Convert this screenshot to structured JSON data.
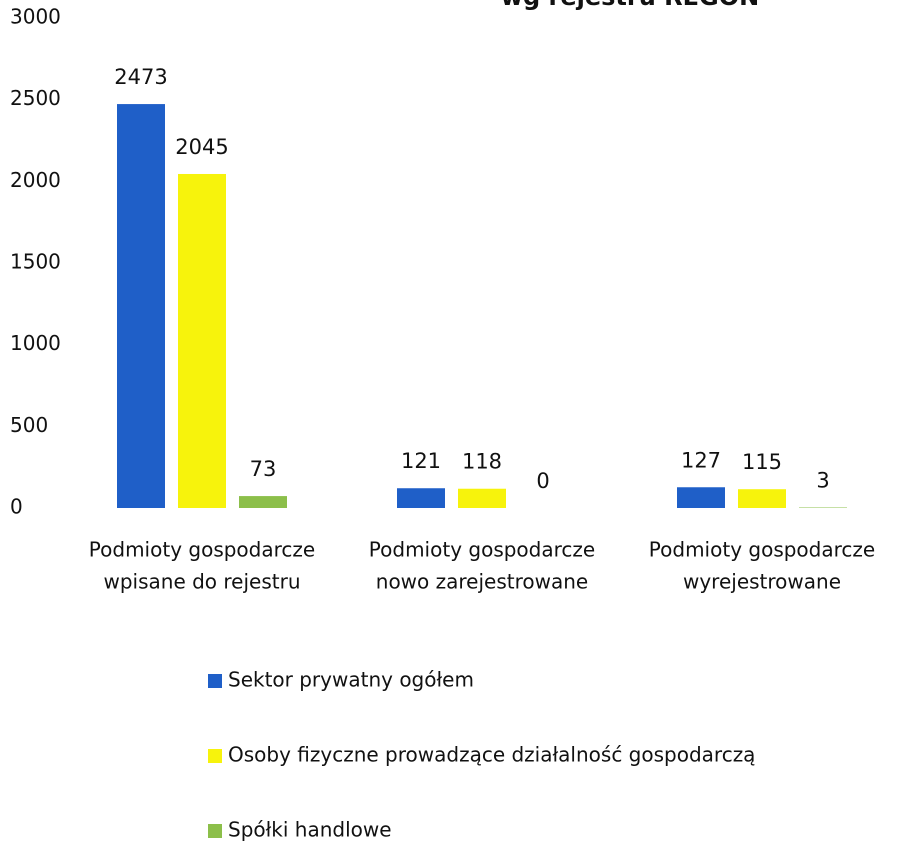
{
  "chart_data": {
    "type": "bar",
    "title": "wg rejestru REGON",
    "categories": [
      [
        "Podmioty gospodarcze",
        "wpisane do rejestru"
      ],
      [
        "Podmioty gospodarcze",
        "nowo zarejestrowane"
      ],
      [
        "Podmioty gospodarcze",
        "wyrejestrowane"
      ]
    ],
    "series": [
      {
        "name": "Sektor prywatny ogółem",
        "color": "#1f5fc8",
        "values": [
          2473,
          121,
          127
        ]
      },
      {
        "name": "Osoby fizyczne prowadzące działalność gospodarczą",
        "color": "#f7f30c",
        "values": [
          2045,
          118,
          115
        ]
      },
      {
        "name": "Spółki handlowe",
        "color": "#8cbf4a",
        "values": [
          73,
          0,
          3
        ]
      }
    ],
    "ylim": [
      0,
      3000
    ],
    "yticks": [
      0,
      500,
      1000,
      1500,
      2000,
      2500,
      3000
    ],
    "grid": false,
    "legend": "bottom"
  }
}
